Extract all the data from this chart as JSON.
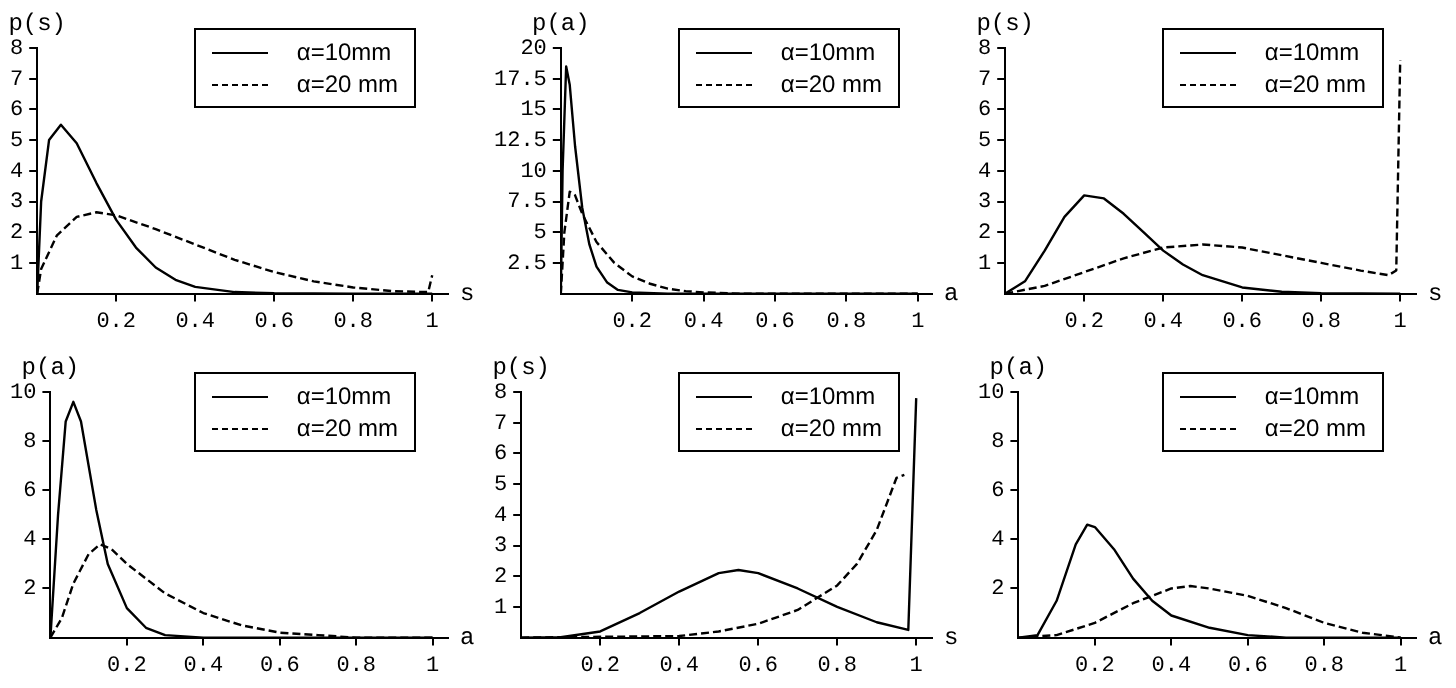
{
  "chart_data": [
    {
      "type": "line",
      "ylabel": "p(s)",
      "xlabel": "s",
      "xlim": [
        0,
        1.04
      ],
      "ylim": [
        0,
        8
      ],
      "xticks": [
        0.2,
        0.4,
        0.6,
        0.8,
        1
      ],
      "yticks": [
        1,
        2,
        3,
        4,
        5,
        6,
        7,
        8
      ],
      "legend": "top right",
      "series": [
        {
          "name": "α=10mm",
          "color": "#000000",
          "line_style": "solid",
          "x": [
            0,
            0.01,
            0.03,
            0.06,
            0.1,
            0.15,
            0.2,
            0.25,
            0.3,
            0.35,
            0.4,
            0.5,
            0.6,
            0.8,
            1
          ],
          "values": [
            0,
            3,
            5,
            5.5,
            4.9,
            3.6,
            2.4,
            1.5,
            0.85,
            0.45,
            0.22,
            0.05,
            0.01,
            0,
            0
          ]
        },
        {
          "name": "α=20 mm",
          "color": "#000000",
          "line_style": "dashed",
          "x": [
            0,
            0.01,
            0.05,
            0.1,
            0.15,
            0.2,
            0.3,
            0.4,
            0.5,
            0.6,
            0.7,
            0.8,
            0.9,
            0.99,
            1
          ],
          "values": [
            0,
            0.8,
            1.9,
            2.5,
            2.65,
            2.55,
            2.1,
            1.6,
            1.1,
            0.7,
            0.4,
            0.2,
            0.08,
            0.05,
            0.6
          ]
        }
      ]
    },
    {
      "type": "line",
      "ylabel": "p(a)",
      "xlabel": "a",
      "xlim": [
        0,
        1.04
      ],
      "ylim": [
        0,
        20
      ],
      "xticks": [
        0.2,
        0.4,
        0.6,
        0.8,
        1
      ],
      "yticks": [
        2.5,
        5,
        7.5,
        10,
        12.5,
        15,
        17.5,
        20
      ],
      "legend": "top right",
      "series": [
        {
          "name": "α=10mm",
          "color": "#000000",
          "line_style": "solid",
          "x": [
            0,
            0.005,
            0.015,
            0.025,
            0.04,
            0.06,
            0.08,
            0.1,
            0.13,
            0.16,
            0.2,
            0.3,
            1
          ],
          "values": [
            0,
            10,
            18.5,
            17,
            12,
            7,
            4,
            2.2,
            0.9,
            0.3,
            0.1,
            0,
            0
          ]
        },
        {
          "name": "α=20 mm",
          "color": "#000000",
          "line_style": "dashed",
          "x": [
            0,
            0.01,
            0.025,
            0.04,
            0.06,
            0.1,
            0.15,
            0.2,
            0.25,
            0.3,
            0.35,
            0.4,
            0.5,
            1
          ],
          "values": [
            0,
            5,
            8.3,
            8,
            6.5,
            4.2,
            2.5,
            1.4,
            0.8,
            0.4,
            0.2,
            0.1,
            0,
            0
          ]
        }
      ]
    },
    {
      "type": "line",
      "ylabel": "p(s)",
      "xlabel": "s",
      "xlim": [
        0,
        1.04
      ],
      "ylim": [
        0,
        8
      ],
      "xticks": [
        0.2,
        0.4,
        0.6,
        0.8,
        1
      ],
      "yticks": [
        1,
        2,
        3,
        4,
        5,
        6,
        7,
        8
      ],
      "legend": "top right",
      "series": [
        {
          "name": "α=10mm",
          "color": "#000000",
          "line_style": "solid",
          "x": [
            0,
            0.05,
            0.1,
            0.15,
            0.2,
            0.25,
            0.3,
            0.35,
            0.4,
            0.45,
            0.5,
            0.6,
            0.7,
            0.8,
            1
          ],
          "values": [
            0,
            0.4,
            1.4,
            2.5,
            3.2,
            3.1,
            2.6,
            2,
            1.4,
            0.95,
            0.6,
            0.2,
            0.06,
            0.01,
            0
          ]
        },
        {
          "name": "α=20 mm",
          "color": "#000000",
          "line_style": "dashed",
          "x": [
            0,
            0.1,
            0.2,
            0.3,
            0.4,
            0.5,
            0.6,
            0.7,
            0.8,
            0.9,
            0.97,
            0.99,
            1
          ],
          "values": [
            0,
            0.25,
            0.7,
            1.15,
            1.5,
            1.6,
            1.5,
            1.25,
            1,
            0.75,
            0.6,
            0.75,
            7.6
          ]
        }
      ]
    },
    {
      "type": "line",
      "ylabel": "p(a)",
      "xlabel": "a",
      "xlim": [
        0,
        1.04
      ],
      "ylim": [
        0,
        10
      ],
      "xticks": [
        0.2,
        0.4,
        0.6,
        0.8,
        1
      ],
      "yticks": [
        2,
        4,
        6,
        8,
        10
      ],
      "legend": "top right",
      "series": [
        {
          "name": "α=10mm",
          "color": "#000000",
          "line_style": "solid",
          "x": [
            0,
            0.02,
            0.04,
            0.06,
            0.08,
            0.1,
            0.12,
            0.15,
            0.2,
            0.25,
            0.3,
            0.4,
            1
          ],
          "values": [
            0,
            5,
            8.8,
            9.6,
            8.8,
            7,
            5.2,
            3,
            1.2,
            0.4,
            0.1,
            0,
            0
          ]
        },
        {
          "name": "α=20 mm",
          "color": "#000000",
          "line_style": "dashed",
          "x": [
            0,
            0.03,
            0.06,
            0.1,
            0.13,
            0.16,
            0.2,
            0.3,
            0.4,
            0.5,
            0.6,
            0.7,
            0.8,
            1
          ],
          "values": [
            0,
            0.8,
            2.2,
            3.4,
            3.8,
            3.6,
            3,
            1.8,
            1,
            0.5,
            0.2,
            0.1,
            0,
            0
          ]
        }
      ]
    },
    {
      "type": "line",
      "ylabel": "p(s)",
      "xlabel": "s",
      "xlim": [
        0,
        1.04
      ],
      "ylim": [
        0,
        8
      ],
      "xticks": [
        0.2,
        0.4,
        0.6,
        0.8,
        1
      ],
      "yticks": [
        1,
        2,
        3,
        4,
        5,
        6,
        7,
        8
      ],
      "legend": "top right",
      "series": [
        {
          "name": "α=10mm",
          "color": "#000000",
          "line_style": "solid",
          "x": [
            0,
            0.1,
            0.2,
            0.3,
            0.4,
            0.5,
            0.55,
            0.6,
            0.7,
            0.8,
            0.9,
            0.98,
            1
          ],
          "values": [
            0,
            0.01,
            0.2,
            0.8,
            1.5,
            2.1,
            2.2,
            2.1,
            1.6,
            1,
            0.5,
            0.25,
            7.8
          ]
        },
        {
          "name": "α=20 mm",
          "color": "#000000",
          "line_style": "dashed",
          "x": [
            0,
            0.4,
            0.5,
            0.6,
            0.7,
            0.8,
            0.85,
            0.9,
            0.95,
            0.97
          ],
          "values": [
            0,
            0.05,
            0.2,
            0.45,
            0.9,
            1.7,
            2.4,
            3.5,
            5.2,
            5.3
          ]
        }
      ]
    },
    {
      "type": "line",
      "ylabel": "p(a)",
      "xlabel": "a",
      "xlim": [
        0,
        1.04
      ],
      "ylim": [
        0,
        10
      ],
      "xticks": [
        0.2,
        0.4,
        0.6,
        0.8,
        1
      ],
      "yticks": [
        2,
        4,
        6,
        8,
        10
      ],
      "legend": "top right",
      "series": [
        {
          "name": "α=10mm",
          "color": "#000000",
          "line_style": "solid",
          "x": [
            0,
            0.05,
            0.1,
            0.15,
            0.18,
            0.2,
            0.25,
            0.3,
            0.35,
            0.4,
            0.5,
            0.6,
            0.7,
            0.8,
            1
          ],
          "values": [
            0,
            0.1,
            1.5,
            3.8,
            4.6,
            4.5,
            3.6,
            2.4,
            1.5,
            0.9,
            0.4,
            0.1,
            0,
            0,
            0
          ]
        },
        {
          "name": "α=20 mm",
          "color": "#000000",
          "line_style": "dashed",
          "x": [
            0,
            0.1,
            0.2,
            0.3,
            0.4,
            0.45,
            0.5,
            0.6,
            0.7,
            0.8,
            0.9,
            1
          ],
          "values": [
            0,
            0.1,
            0.6,
            1.4,
            2,
            2.1,
            2,
            1.7,
            1.2,
            0.6,
            0.2,
            0
          ]
        }
      ]
    }
  ]
}
